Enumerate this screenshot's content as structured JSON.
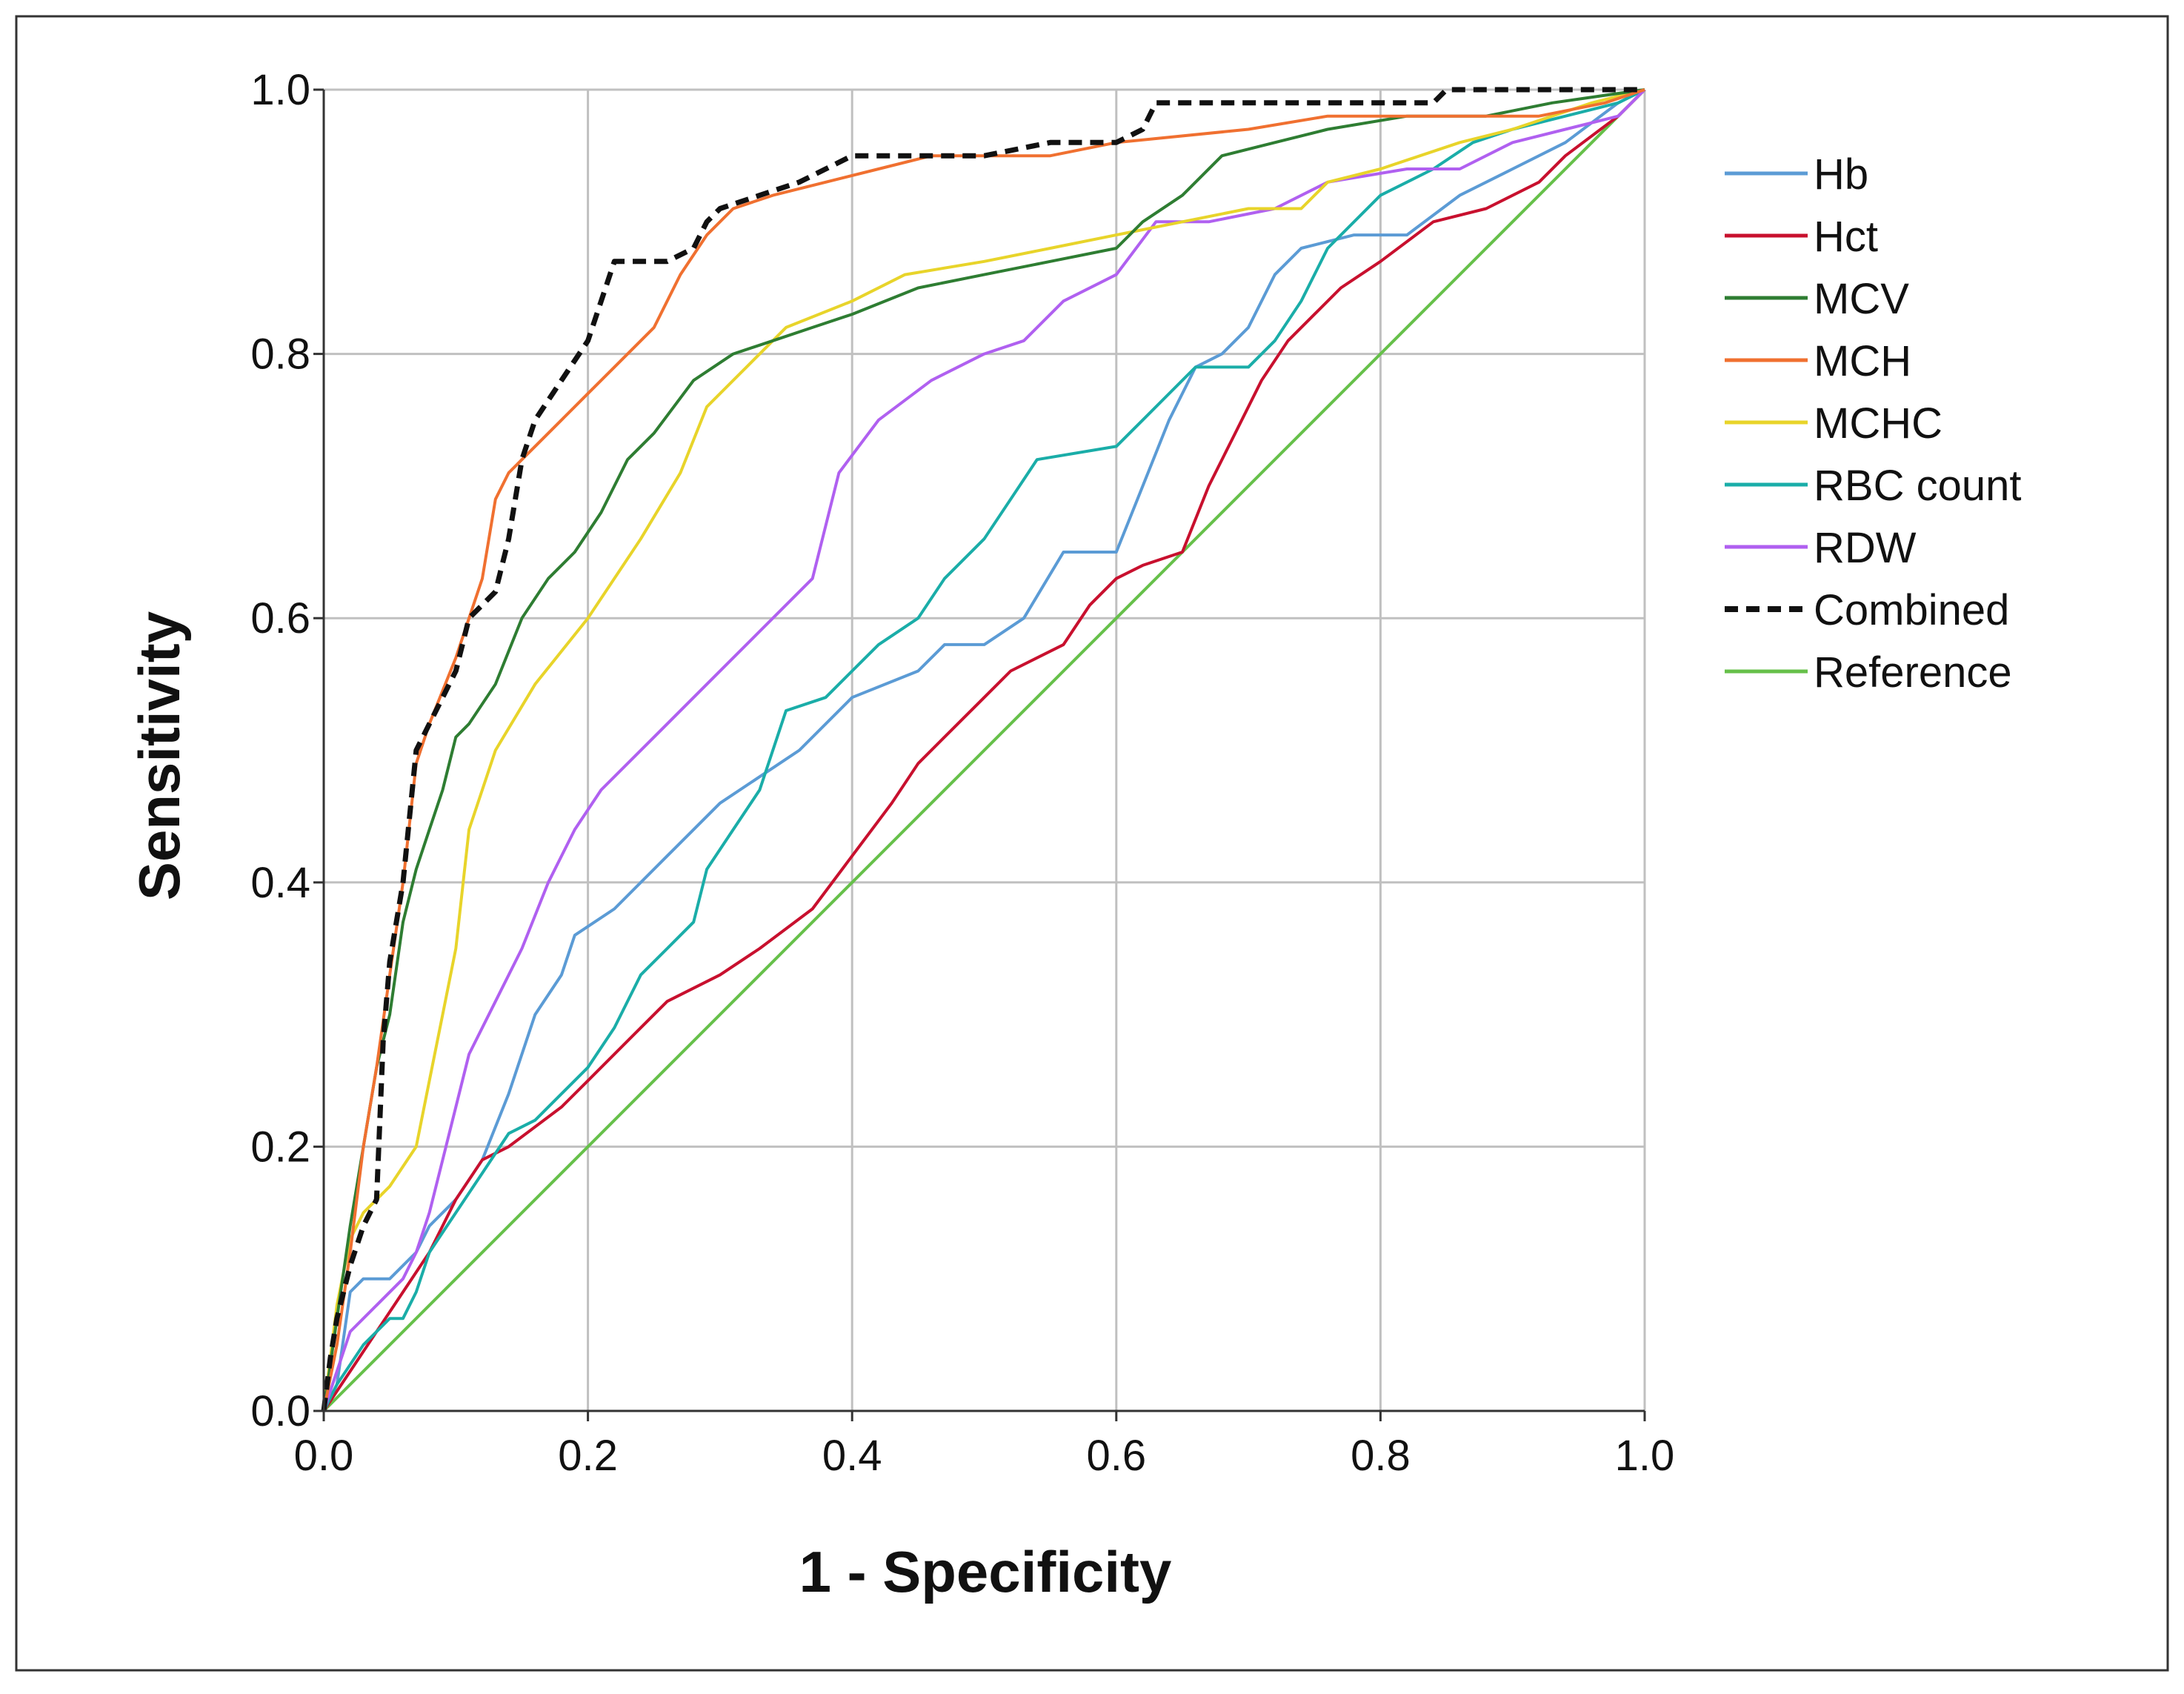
{
  "chart_data": {
    "type": "line",
    "title": "",
    "xlabel": "1 - Specificity",
    "ylabel": "Sensitivity",
    "xlim": [
      0,
      1
    ],
    "ylim": [
      0,
      1
    ],
    "xticks": [
      "0.0",
      "0.2",
      "0.4",
      "0.6",
      "0.8",
      "1.0"
    ],
    "yticks": [
      "0.0",
      "0.2",
      "0.4",
      "0.6",
      "0.8",
      "1.0"
    ],
    "grid": true,
    "legend_position": "right",
    "series": [
      {
        "name": "Hb",
        "color": "#5b9bd5",
        "dash": false,
        "points": [
          [
            0,
            0
          ],
          [
            0.01,
            0.02
          ],
          [
            0.02,
            0.09
          ],
          [
            0.03,
            0.1
          ],
          [
            0.05,
            0.1
          ],
          [
            0.07,
            0.12
          ],
          [
            0.08,
            0.14
          ],
          [
            0.1,
            0.16
          ],
          [
            0.12,
            0.19
          ],
          [
            0.14,
            0.24
          ],
          [
            0.16,
            0.3
          ],
          [
            0.18,
            0.33
          ],
          [
            0.19,
            0.36
          ],
          [
            0.22,
            0.38
          ],
          [
            0.26,
            0.42
          ],
          [
            0.3,
            0.46
          ],
          [
            0.36,
            0.5
          ],
          [
            0.4,
            0.54
          ],
          [
            0.45,
            0.56
          ],
          [
            0.47,
            0.58
          ],
          [
            0.5,
            0.58
          ],
          [
            0.53,
            0.6
          ],
          [
            0.56,
            0.65
          ],
          [
            0.6,
            0.65
          ],
          [
            0.62,
            0.7
          ],
          [
            0.64,
            0.75
          ],
          [
            0.66,
            0.79
          ],
          [
            0.68,
            0.8
          ],
          [
            0.7,
            0.82
          ],
          [
            0.72,
            0.86
          ],
          [
            0.74,
            0.88
          ],
          [
            0.78,
            0.89
          ],
          [
            0.82,
            0.89
          ],
          [
            0.86,
            0.92
          ],
          [
            0.9,
            0.94
          ],
          [
            0.94,
            0.96
          ],
          [
            0.98,
            0.99
          ],
          [
            1,
            1
          ]
        ]
      },
      {
        "name": "Hct",
        "color": "#c8102e",
        "dash": false,
        "points": [
          [
            0,
            0
          ],
          [
            0.02,
            0.03
          ],
          [
            0.04,
            0.06
          ],
          [
            0.06,
            0.09
          ],
          [
            0.08,
            0.12
          ],
          [
            0.1,
            0.16
          ],
          [
            0.12,
            0.19
          ],
          [
            0.14,
            0.2
          ],
          [
            0.18,
            0.23
          ],
          [
            0.2,
            0.25
          ],
          [
            0.24,
            0.29
          ],
          [
            0.26,
            0.31
          ],
          [
            0.3,
            0.33
          ],
          [
            0.33,
            0.35
          ],
          [
            0.37,
            0.38
          ],
          [
            0.4,
            0.42
          ],
          [
            0.43,
            0.46
          ],
          [
            0.45,
            0.49
          ],
          [
            0.48,
            0.52
          ],
          [
            0.5,
            0.54
          ],
          [
            0.52,
            0.56
          ],
          [
            0.56,
            0.58
          ],
          [
            0.58,
            0.61
          ],
          [
            0.6,
            0.63
          ],
          [
            0.62,
            0.64
          ],
          [
            0.65,
            0.65
          ],
          [
            0.67,
            0.7
          ],
          [
            0.69,
            0.74
          ],
          [
            0.71,
            0.78
          ],
          [
            0.73,
            0.81
          ],
          [
            0.75,
            0.83
          ],
          [
            0.77,
            0.85
          ],
          [
            0.8,
            0.87
          ],
          [
            0.84,
            0.9
          ],
          [
            0.88,
            0.91
          ],
          [
            0.92,
            0.93
          ],
          [
            0.94,
            0.95
          ],
          [
            0.98,
            0.98
          ],
          [
            1,
            1
          ]
        ]
      },
      {
        "name": "MCV",
        "color": "#2e7d32",
        "dash": false,
        "points": [
          [
            0,
            0
          ],
          [
            0.01,
            0.07
          ],
          [
            0.02,
            0.14
          ],
          [
            0.03,
            0.2
          ],
          [
            0.04,
            0.26
          ],
          [
            0.05,
            0.3
          ],
          [
            0.06,
            0.37
          ],
          [
            0.07,
            0.41
          ],
          [
            0.08,
            0.44
          ],
          [
            0.09,
            0.47
          ],
          [
            0.1,
            0.51
          ],
          [
            0.11,
            0.52
          ],
          [
            0.13,
            0.55
          ],
          [
            0.15,
            0.6
          ],
          [
            0.17,
            0.63
          ],
          [
            0.19,
            0.65
          ],
          [
            0.21,
            0.68
          ],
          [
            0.23,
            0.72
          ],
          [
            0.25,
            0.74
          ],
          [
            0.28,
            0.78
          ],
          [
            0.31,
            0.8
          ],
          [
            0.34,
            0.81
          ],
          [
            0.37,
            0.82
          ],
          [
            0.4,
            0.83
          ],
          [
            0.45,
            0.85
          ],
          [
            0.5,
            0.86
          ],
          [
            0.55,
            0.87
          ],
          [
            0.6,
            0.88
          ],
          [
            0.62,
            0.9
          ],
          [
            0.65,
            0.92
          ],
          [
            0.68,
            0.95
          ],
          [
            0.72,
            0.96
          ],
          [
            0.76,
            0.97
          ],
          [
            0.82,
            0.98
          ],
          [
            0.88,
            0.98
          ],
          [
            0.93,
            0.99
          ],
          [
            1,
            1
          ]
        ]
      },
      {
        "name": "MCH",
        "color": "#f07030",
        "dash": false,
        "points": [
          [
            0,
            0
          ],
          [
            0.01,
            0.05
          ],
          [
            0.02,
            0.12
          ],
          [
            0.03,
            0.2
          ],
          [
            0.04,
            0.26
          ],
          [
            0.05,
            0.33
          ],
          [
            0.06,
            0.4
          ],
          [
            0.07,
            0.49
          ],
          [
            0.08,
            0.52
          ],
          [
            0.1,
            0.57
          ],
          [
            0.11,
            0.6
          ],
          [
            0.12,
            0.63
          ],
          [
            0.13,
            0.69
          ],
          [
            0.14,
            0.71
          ],
          [
            0.15,
            0.72
          ],
          [
            0.18,
            0.75
          ],
          [
            0.2,
            0.77
          ],
          [
            0.22,
            0.79
          ],
          [
            0.25,
            0.82
          ],
          [
            0.27,
            0.86
          ],
          [
            0.29,
            0.89
          ],
          [
            0.31,
            0.91
          ],
          [
            0.34,
            0.92
          ],
          [
            0.38,
            0.93
          ],
          [
            0.42,
            0.94
          ],
          [
            0.46,
            0.95
          ],
          [
            0.5,
            0.95
          ],
          [
            0.55,
            0.95
          ],
          [
            0.6,
            0.96
          ],
          [
            0.7,
            0.97
          ],
          [
            0.76,
            0.98
          ],
          [
            0.84,
            0.98
          ],
          [
            0.92,
            0.98
          ],
          [
            0.97,
            0.99
          ],
          [
            1,
            1
          ]
        ]
      },
      {
        "name": "MCHC",
        "color": "#e8d42a",
        "dash": false,
        "points": [
          [
            0,
            0
          ],
          [
            0.01,
            0.08
          ],
          [
            0.02,
            0.13
          ],
          [
            0.03,
            0.15
          ],
          [
            0.05,
            0.17
          ],
          [
            0.07,
            0.2
          ],
          [
            0.08,
            0.25
          ],
          [
            0.09,
            0.3
          ],
          [
            0.1,
            0.35
          ],
          [
            0.11,
            0.44
          ],
          [
            0.13,
            0.5
          ],
          [
            0.16,
            0.55
          ],
          [
            0.2,
            0.6
          ],
          [
            0.24,
            0.66
          ],
          [
            0.27,
            0.71
          ],
          [
            0.29,
            0.76
          ],
          [
            0.32,
            0.79
          ],
          [
            0.35,
            0.82
          ],
          [
            0.4,
            0.84
          ],
          [
            0.44,
            0.86
          ],
          [
            0.5,
            0.87
          ],
          [
            0.55,
            0.88
          ],
          [
            0.6,
            0.89
          ],
          [
            0.65,
            0.9
          ],
          [
            0.7,
            0.91
          ],
          [
            0.74,
            0.91
          ],
          [
            0.76,
            0.93
          ],
          [
            0.8,
            0.94
          ],
          [
            0.86,
            0.96
          ],
          [
            0.9,
            0.97
          ],
          [
            0.96,
            0.99
          ],
          [
            1,
            1
          ]
        ]
      },
      {
        "name": "RBC count",
        "color": "#1aada8",
        "dash": false,
        "points": [
          [
            0,
            0
          ],
          [
            0.01,
            0.02
          ],
          [
            0.03,
            0.05
          ],
          [
            0.05,
            0.07
          ],
          [
            0.06,
            0.07
          ],
          [
            0.07,
            0.09
          ],
          [
            0.08,
            0.12
          ],
          [
            0.1,
            0.15
          ],
          [
            0.12,
            0.18
          ],
          [
            0.14,
            0.21
          ],
          [
            0.16,
            0.22
          ],
          [
            0.18,
            0.24
          ],
          [
            0.2,
            0.26
          ],
          [
            0.22,
            0.29
          ],
          [
            0.24,
            0.33
          ],
          [
            0.26,
            0.35
          ],
          [
            0.28,
            0.37
          ],
          [
            0.29,
            0.41
          ],
          [
            0.31,
            0.44
          ],
          [
            0.33,
            0.47
          ],
          [
            0.35,
            0.53
          ],
          [
            0.38,
            0.54
          ],
          [
            0.4,
            0.56
          ],
          [
            0.42,
            0.58
          ],
          [
            0.45,
            0.6
          ],
          [
            0.47,
            0.63
          ],
          [
            0.5,
            0.66
          ],
          [
            0.52,
            0.69
          ],
          [
            0.54,
            0.72
          ],
          [
            0.6,
            0.73
          ],
          [
            0.62,
            0.75
          ],
          [
            0.64,
            0.77
          ],
          [
            0.66,
            0.79
          ],
          [
            0.7,
            0.79
          ],
          [
            0.72,
            0.81
          ],
          [
            0.74,
            0.84
          ],
          [
            0.76,
            0.88
          ],
          [
            0.8,
            0.92
          ],
          [
            0.84,
            0.94
          ],
          [
            0.87,
            0.96
          ],
          [
            0.9,
            0.97
          ],
          [
            0.94,
            0.98
          ],
          [
            0.98,
            0.99
          ],
          [
            1,
            1
          ]
        ]
      },
      {
        "name": "RDW",
        "color": "#b060f0",
        "dash": false,
        "points": [
          [
            0,
            0
          ],
          [
            0.01,
            0.03
          ],
          [
            0.02,
            0.06
          ],
          [
            0.04,
            0.08
          ],
          [
            0.06,
            0.1
          ],
          [
            0.07,
            0.12
          ],
          [
            0.08,
            0.15
          ],
          [
            0.09,
            0.19
          ],
          [
            0.1,
            0.23
          ],
          [
            0.11,
            0.27
          ],
          [
            0.13,
            0.31
          ],
          [
            0.15,
            0.35
          ],
          [
            0.17,
            0.4
          ],
          [
            0.19,
            0.44
          ],
          [
            0.21,
            0.47
          ],
          [
            0.25,
            0.51
          ],
          [
            0.29,
            0.55
          ],
          [
            0.33,
            0.59
          ],
          [
            0.37,
            0.63
          ],
          [
            0.39,
            0.71
          ],
          [
            0.42,
            0.75
          ],
          [
            0.46,
            0.78
          ],
          [
            0.5,
            0.8
          ],
          [
            0.53,
            0.81
          ],
          [
            0.56,
            0.84
          ],
          [
            0.6,
            0.86
          ],
          [
            0.63,
            0.9
          ],
          [
            0.67,
            0.9
          ],
          [
            0.72,
            0.91
          ],
          [
            0.76,
            0.93
          ],
          [
            0.82,
            0.94
          ],
          [
            0.86,
            0.94
          ],
          [
            0.9,
            0.96
          ],
          [
            0.94,
            0.97
          ],
          [
            0.98,
            0.98
          ],
          [
            1,
            1
          ]
        ]
      },
      {
        "name": "Combined",
        "color": "#111111",
        "dash": true,
        "points": [
          [
            0,
            0
          ],
          [
            0.005,
            0.04
          ],
          [
            0.01,
            0.07
          ],
          [
            0.02,
            0.11
          ],
          [
            0.03,
            0.14
          ],
          [
            0.04,
            0.16
          ],
          [
            0.045,
            0.28
          ],
          [
            0.05,
            0.34
          ],
          [
            0.06,
            0.4
          ],
          [
            0.065,
            0.45
          ],
          [
            0.07,
            0.5
          ],
          [
            0.08,
            0.52
          ],
          [
            0.09,
            0.54
          ],
          [
            0.1,
            0.56
          ],
          [
            0.11,
            0.6
          ],
          [
            0.13,
            0.62
          ],
          [
            0.14,
            0.66
          ],
          [
            0.15,
            0.72
          ],
          [
            0.16,
            0.75
          ],
          [
            0.18,
            0.78
          ],
          [
            0.2,
            0.81
          ],
          [
            0.22,
            0.87
          ],
          [
            0.26,
            0.87
          ],
          [
            0.28,
            0.88
          ],
          [
            0.29,
            0.9
          ],
          [
            0.3,
            0.91
          ],
          [
            0.33,
            0.92
          ],
          [
            0.36,
            0.93
          ],
          [
            0.38,
            0.94
          ],
          [
            0.4,
            0.95
          ],
          [
            0.45,
            0.95
          ],
          [
            0.5,
            0.95
          ],
          [
            0.55,
            0.96
          ],
          [
            0.6,
            0.96
          ],
          [
            0.62,
            0.97
          ],
          [
            0.63,
            0.99
          ],
          [
            0.7,
            0.99
          ],
          [
            0.75,
            0.99
          ],
          [
            0.8,
            0.99
          ],
          [
            0.84,
            0.99
          ],
          [
            0.85,
            1
          ],
          [
            0.9,
            1
          ],
          [
            1,
            1
          ]
        ]
      },
      {
        "name": "Reference",
        "color": "#66c04a",
        "dash": false,
        "points": [
          [
            0,
            0
          ],
          [
            1,
            1
          ]
        ]
      }
    ]
  }
}
